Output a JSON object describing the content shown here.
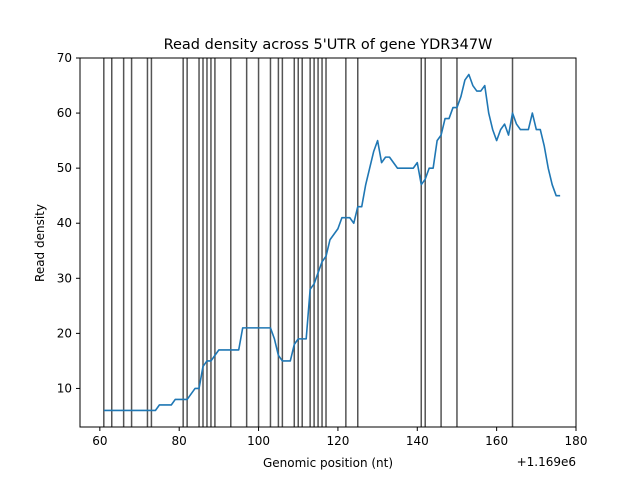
{
  "chart_data": {
    "type": "line",
    "title": "Read density across 5'UTR of gene YDR347W",
    "xlabel": "Genomic position (nt)",
    "ylabel": "Read density",
    "x_offset_label": "+1.169e6",
    "xlim": [
      55,
      180
    ],
    "ylim": [
      3,
      70
    ],
    "xticks": [
      60,
      80,
      100,
      120,
      140,
      160,
      180
    ],
    "yticks": [
      10,
      20,
      30,
      40,
      50,
      60,
      70
    ],
    "grid": false,
    "legend": "none",
    "line_color": "#1f77b4",
    "vline_color": "#555555",
    "vlines": [
      61,
      63,
      66,
      68,
      72,
      73,
      81,
      82,
      85,
      86,
      87,
      88,
      89,
      93,
      97,
      100,
      103,
      105,
      106,
      109,
      110,
      111,
      113,
      114,
      115,
      116,
      117,
      122,
      125,
      141,
      142,
      146,
      150,
      164
    ],
    "series": [
      {
        "x": [
          61,
          62,
          63,
          64,
          65,
          66,
          67,
          68,
          69,
          70,
          71,
          72,
          73,
          74,
          75,
          76,
          77,
          78,
          79,
          80,
          81,
          82,
          83,
          84,
          85,
          86,
          87,
          88,
          89,
          90,
          91,
          92,
          93,
          94,
          95,
          96,
          97,
          98,
          99,
          100,
          101,
          102,
          103,
          104,
          105,
          106,
          107,
          108,
          109,
          110,
          111,
          112,
          113,
          114,
          115,
          116,
          117,
          118,
          119,
          120,
          121,
          122,
          123,
          124,
          125,
          126,
          127,
          128,
          129,
          130,
          131,
          132,
          133,
          134,
          135,
          136,
          137,
          138,
          139,
          140,
          141,
          142,
          143,
          144,
          145,
          146,
          147,
          148,
          149,
          150,
          151,
          152,
          153,
          154,
          155,
          156,
          157,
          158,
          159,
          160,
          161,
          162,
          163,
          164,
          165,
          166,
          167,
          168,
          169,
          170,
          171,
          172,
          173,
          174,
          175,
          176
        ],
        "values": [
          6,
          6,
          6,
          6,
          6,
          6,
          6,
          6,
          6,
          6,
          6,
          6,
          6,
          6,
          7,
          7,
          7,
          7,
          8,
          8,
          8,
          8,
          9,
          10,
          10,
          14,
          15,
          15,
          16,
          17,
          17,
          17,
          17,
          17,
          17,
          21,
          21,
          21,
          21,
          21,
          21,
          21,
          21,
          19,
          16,
          15,
          15,
          15,
          18,
          19,
          19,
          19,
          28,
          29,
          31,
          33,
          34,
          37,
          38,
          39,
          41,
          41,
          41,
          40,
          43,
          43,
          47,
          50,
          53,
          55,
          51,
          52,
          52,
          51,
          50,
          50,
          50,
          50,
          50,
          51,
          47,
          48,
          50,
          50,
          55,
          56,
          59,
          59,
          61,
          61,
          63,
          66,
          67,
          65,
          64,
          64,
          65,
          60,
          57,
          55,
          57,
          58,
          56,
          60,
          58,
          57,
          57,
          57,
          60,
          57,
          57,
          54,
          50,
          47,
          45,
          45
        ]
      }
    ]
  }
}
